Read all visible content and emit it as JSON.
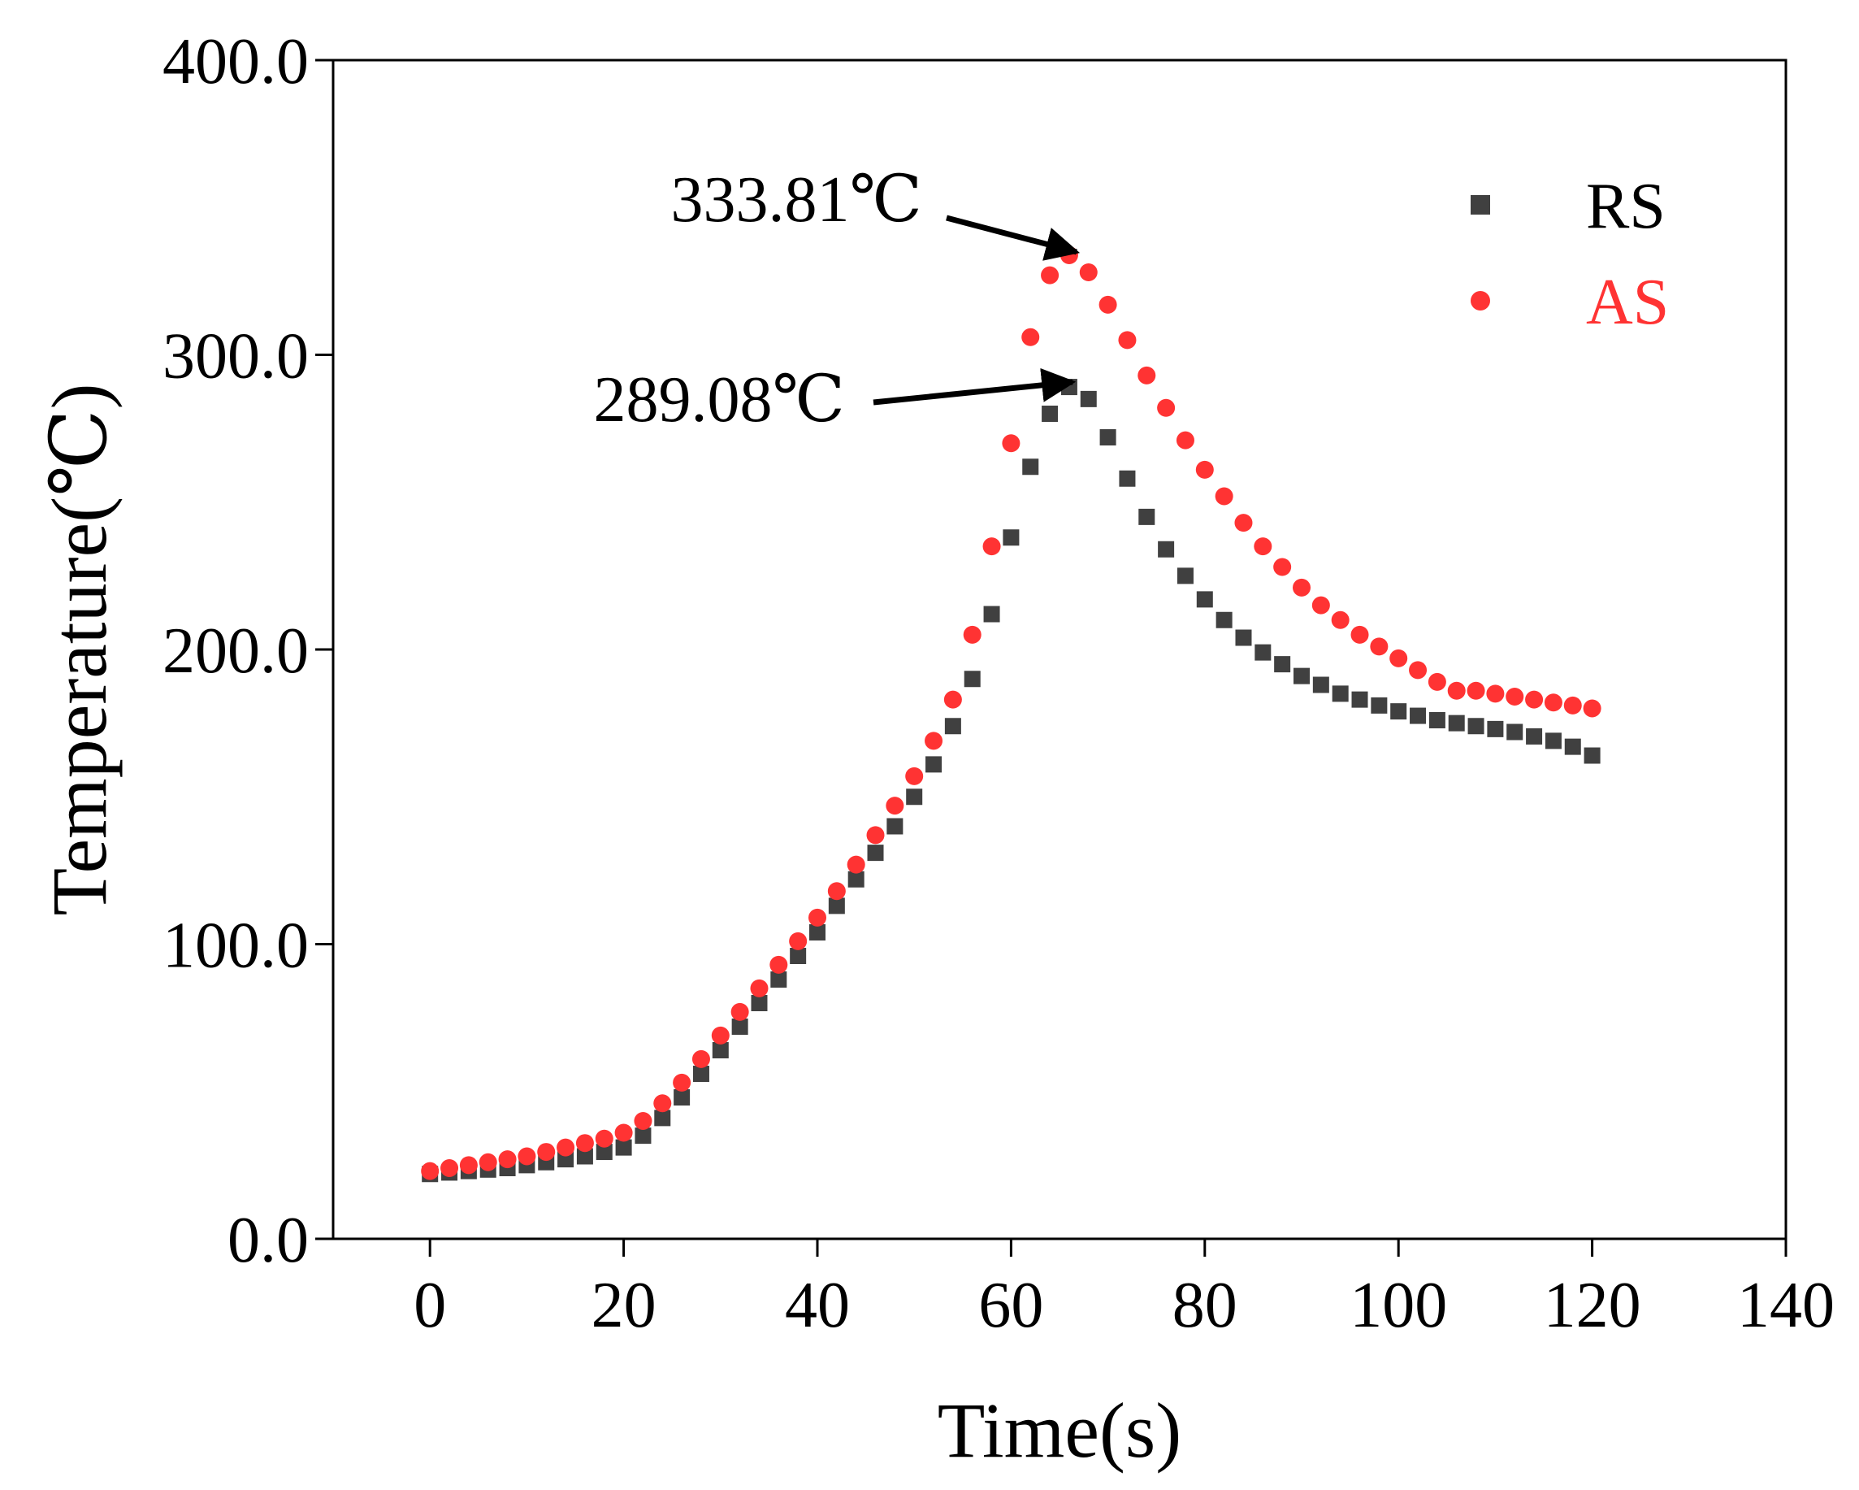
{
  "chart_data": {
    "type": "scatter",
    "xlabel": "Time(s)",
    "ylabel": "Temperature(℃)",
    "xlim": [
      -10,
      140
    ],
    "ylim": [
      0,
      400
    ],
    "xticks": [
      0,
      20,
      40,
      60,
      80,
      100,
      120,
      140
    ],
    "xtick_labels": [
      "0",
      "20",
      "40",
      "60",
      "80",
      "100",
      "120",
      "140"
    ],
    "yticks": [
      0,
      100,
      200,
      300,
      400
    ],
    "ytick_labels": [
      "0.0",
      "100.0",
      "200.0",
      "300.0",
      "400.0"
    ],
    "grid": false,
    "legend": "top-right",
    "series": [
      {
        "name": "RS",
        "color": "#404040",
        "marker": "square",
        "points": [
          [
            0,
            22
          ],
          [
            2,
            22.5
          ],
          [
            4,
            23
          ],
          [
            6,
            23.5
          ],
          [
            8,
            24
          ],
          [
            10,
            25
          ],
          [
            12,
            26
          ],
          [
            14,
            27
          ],
          [
            16,
            28
          ],
          [
            18,
            29.5
          ],
          [
            20,
            31
          ],
          [
            22,
            35
          ],
          [
            24,
            41
          ],
          [
            26,
            48
          ],
          [
            28,
            56
          ],
          [
            30,
            64
          ],
          [
            32,
            72
          ],
          [
            34,
            80
          ],
          [
            36,
            88
          ],
          [
            38,
            96
          ],
          [
            40,
            104
          ],
          [
            42,
            113
          ],
          [
            44,
            122
          ],
          [
            46,
            131
          ],
          [
            48,
            140
          ],
          [
            50,
            150
          ],
          [
            52,
            161
          ],
          [
            54,
            174
          ],
          [
            56,
            190
          ],
          [
            58,
            212
          ],
          [
            60,
            238
          ],
          [
            62,
            262
          ],
          [
            64,
            280
          ],
          [
            66,
            289.08
          ],
          [
            68,
            285
          ],
          [
            70,
            272
          ],
          [
            72,
            258
          ],
          [
            74,
            245
          ],
          [
            76,
            234
          ],
          [
            78,
            225
          ],
          [
            80,
            217
          ],
          [
            82,
            210
          ],
          [
            84,
            204
          ],
          [
            86,
            199
          ],
          [
            88,
            195
          ],
          [
            90,
            191
          ],
          [
            92,
            188
          ],
          [
            94,
            185
          ],
          [
            96,
            183
          ],
          [
            98,
            181
          ],
          [
            100,
            179
          ],
          [
            102,
            177.5
          ],
          [
            104,
            176
          ],
          [
            106,
            175
          ],
          [
            108,
            174
          ],
          [
            110,
            173
          ],
          [
            112,
            172
          ],
          [
            114,
            170.5
          ],
          [
            116,
            169
          ],
          [
            118,
            167
          ],
          [
            120,
            164
          ]
        ]
      },
      {
        "name": "AS",
        "color": "#ff3333",
        "marker": "circle",
        "points": [
          [
            0,
            23
          ],
          [
            2,
            24
          ],
          [
            4,
            25
          ],
          [
            6,
            26
          ],
          [
            8,
            27
          ],
          [
            10,
            28
          ],
          [
            12,
            29.5
          ],
          [
            14,
            31
          ],
          [
            16,
            32.5
          ],
          [
            18,
            34
          ],
          [
            20,
            36
          ],
          [
            22,
            40
          ],
          [
            24,
            46
          ],
          [
            26,
            53
          ],
          [
            28,
            61
          ],
          [
            30,
            69
          ],
          [
            32,
            77
          ],
          [
            34,
            85
          ],
          [
            36,
            93
          ],
          [
            38,
            101
          ],
          [
            40,
            109
          ],
          [
            42,
            118
          ],
          [
            44,
            127
          ],
          [
            46,
            137
          ],
          [
            48,
            147
          ],
          [
            50,
            157
          ],
          [
            52,
            169
          ],
          [
            54,
            183
          ],
          [
            56,
            205
          ],
          [
            58,
            235
          ],
          [
            60,
            270
          ],
          [
            62,
            306
          ],
          [
            64,
            327
          ],
          [
            66,
            333.81
          ],
          [
            68,
            328
          ],
          [
            70,
            317
          ],
          [
            72,
            305
          ],
          [
            74,
            293
          ],
          [
            76,
            282
          ],
          [
            78,
            271
          ],
          [
            80,
            261
          ],
          [
            82,
            252
          ],
          [
            84,
            243
          ],
          [
            86,
            235
          ],
          [
            88,
            228
          ],
          [
            90,
            221
          ],
          [
            92,
            215
          ],
          [
            94,
            210
          ],
          [
            96,
            205
          ],
          [
            98,
            201
          ],
          [
            100,
            197
          ],
          [
            102,
            193
          ],
          [
            104,
            189
          ],
          [
            106,
            186
          ],
          [
            108,
            186
          ],
          [
            110,
            185
          ],
          [
            112,
            184
          ],
          [
            114,
            183
          ],
          [
            116,
            182
          ],
          [
            118,
            181
          ],
          [
            120,
            180
          ]
        ]
      }
    ],
    "annotations": [
      {
        "text": "333.81℃",
        "x": 66,
        "y": 333.81
      },
      {
        "text": "289.08℃",
        "x": 66,
        "y": 289.08
      }
    ]
  }
}
